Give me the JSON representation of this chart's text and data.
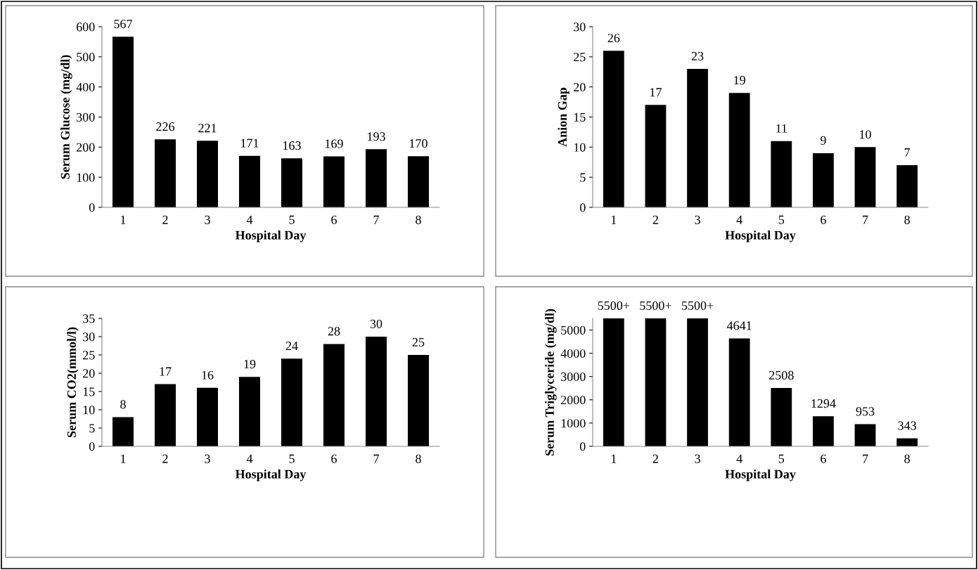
{
  "chart_data": [
    {
      "type": "bar",
      "categories": [
        "1",
        "2",
        "3",
        "4",
        "5",
        "6",
        "7",
        "8"
      ],
      "values": [
        567,
        226,
        221,
        171,
        163,
        169,
        193,
        170
      ],
      "color": "#000000",
      "xlabel": "Hospital Day",
      "ylabel": "Serum Glucose (mg/dl)",
      "ylim": [
        0,
        600
      ],
      "yticks": [
        0,
        100,
        200,
        300,
        400,
        500,
        600
      ],
      "data_labels": true,
      "grid": false,
      "legend": false
    },
    {
      "type": "bar",
      "categories": [
        "1",
        "2",
        "3",
        "4",
        "5",
        "6",
        "7",
        "8"
      ],
      "values": [
        26,
        17,
        23,
        19,
        11,
        9,
        10,
        7
      ],
      "color": "#000000",
      "xlabel": "Hospital Day",
      "ylabel": "Anion Gap",
      "ylim": [
        0,
        30
      ],
      "yticks": [
        0,
        5,
        10,
        15,
        20,
        25,
        30
      ],
      "data_labels": true,
      "grid": false,
      "legend": false
    },
    {
      "type": "bar",
      "categories": [
        "1",
        "2",
        "3",
        "4",
        "5",
        "6",
        "7",
        "8"
      ],
      "values": [
        8,
        17,
        16,
        19,
        24,
        28,
        30,
        25
      ],
      "color": "#000000",
      "xlabel": "Hospital Day",
      "ylabel": "Serum CO2(mmol/l)",
      "ylim": [
        0,
        35
      ],
      "yticks": [
        0,
        5,
        10,
        15,
        20,
        25,
        30,
        35
      ],
      "data_labels": true,
      "grid": false,
      "legend": false
    },
    {
      "type": "bar",
      "categories": [
        "1",
        "2",
        "3",
        "4",
        "5",
        "6",
        "7",
        "8"
      ],
      "values": [
        5500,
        5500,
        5500,
        4641,
        2508,
        1294,
        953,
        343
      ],
      "value_labels": [
        "5500+",
        "5500+",
        "5500+",
        "4641",
        "2508",
        "1294",
        "953",
        "343"
      ],
      "color": "#000000",
      "xlabel": "Hospital Day",
      "ylabel": "Serum Triglyceride (mg/dl)",
      "ylim": [
        0,
        5500
      ],
      "yticks": [
        0,
        1000,
        2000,
        3000,
        4000,
        5000
      ],
      "grid": false,
      "legend": false
    }
  ]
}
